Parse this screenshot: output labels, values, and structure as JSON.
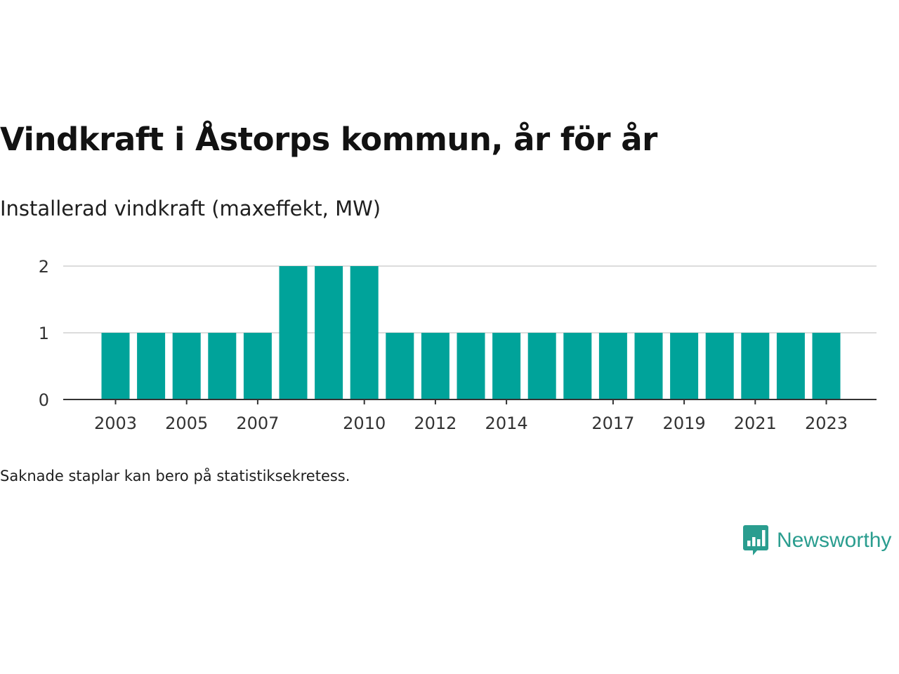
{
  "chart_data": {
    "type": "bar",
    "title": "Vindkraft i Åstorps kommun, år för år",
    "subtitle": "Installerad vindkraft (maxeffekt, MW)",
    "categories": [
      "2003",
      "2004",
      "2005",
      "2006",
      "2007",
      "2008",
      "2009",
      "2010",
      "2011",
      "2012",
      "2013",
      "2014",
      "2015",
      "2016",
      "2017",
      "2018",
      "2019",
      "2020",
      "2021",
      "2022",
      "2023"
    ],
    "values": [
      1,
      1,
      1,
      1,
      1,
      2,
      2,
      2,
      1,
      1,
      1,
      1,
      1,
      1,
      1,
      1,
      1,
      1,
      1,
      1,
      1
    ],
    "x_tick_labels": [
      "2003",
      "2005",
      "2007",
      "2010",
      "2012",
      "2014",
      "2017",
      "2019",
      "2021",
      "2023"
    ],
    "y_ticks": [
      "0",
      "1",
      "2"
    ],
    "ylim": [
      0,
      2
    ],
    "xlabel": "",
    "ylabel": "",
    "grid": true,
    "legend": "none",
    "bar_color": "#00a39a"
  },
  "note": "Saknade staplar kan bero på statistiksekretess.",
  "brand": {
    "name": "Newsworthy",
    "icon": "bar-chart-speech-bubble-icon",
    "color": "#2a9d8f"
  }
}
